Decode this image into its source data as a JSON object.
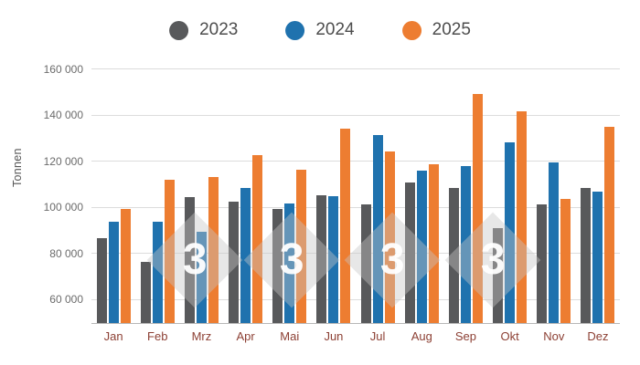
{
  "ylabel": "Tonnen",
  "watermark": {
    "glyph": "3"
  },
  "chart_data": {
    "type": "bar",
    "title": "",
    "xlabel": "",
    "ylabel": "Tonnen",
    "categories": [
      "Jan",
      "Feb",
      "Mrz",
      "Apr",
      "Mai",
      "Jun",
      "Jul",
      "Aug",
      "Sep",
      "Okt",
      "Nov",
      "Dez"
    ],
    "series": [
      {
        "name": "2023",
        "color": "#58595B",
        "values": [
          87000,
          76500,
          104500,
          102500,
          99500,
          105500,
          101500,
          111000,
          108500,
          91000,
          101500,
          108500
        ]
      },
      {
        "name": "2024",
        "color": "#1F72AE",
        "values": [
          94000,
          94000,
          89500,
          108500,
          102000,
          105000,
          131500,
          116000,
          118000,
          128500,
          119500,
          107000
        ]
      },
      {
        "name": "2025",
        "color": "#ED7D31",
        "values": [
          99500,
          112000,
          113500,
          123000,
          116500,
          134500,
          124500,
          119000,
          149500,
          142000,
          104000,
          135000
        ]
      }
    ],
    "ylim": [
      50000,
      164000
    ],
    "yticks": [
      60000,
      80000,
      100000,
      120000,
      140000,
      160000
    ],
    "grid": true,
    "legend_position": "top"
  }
}
